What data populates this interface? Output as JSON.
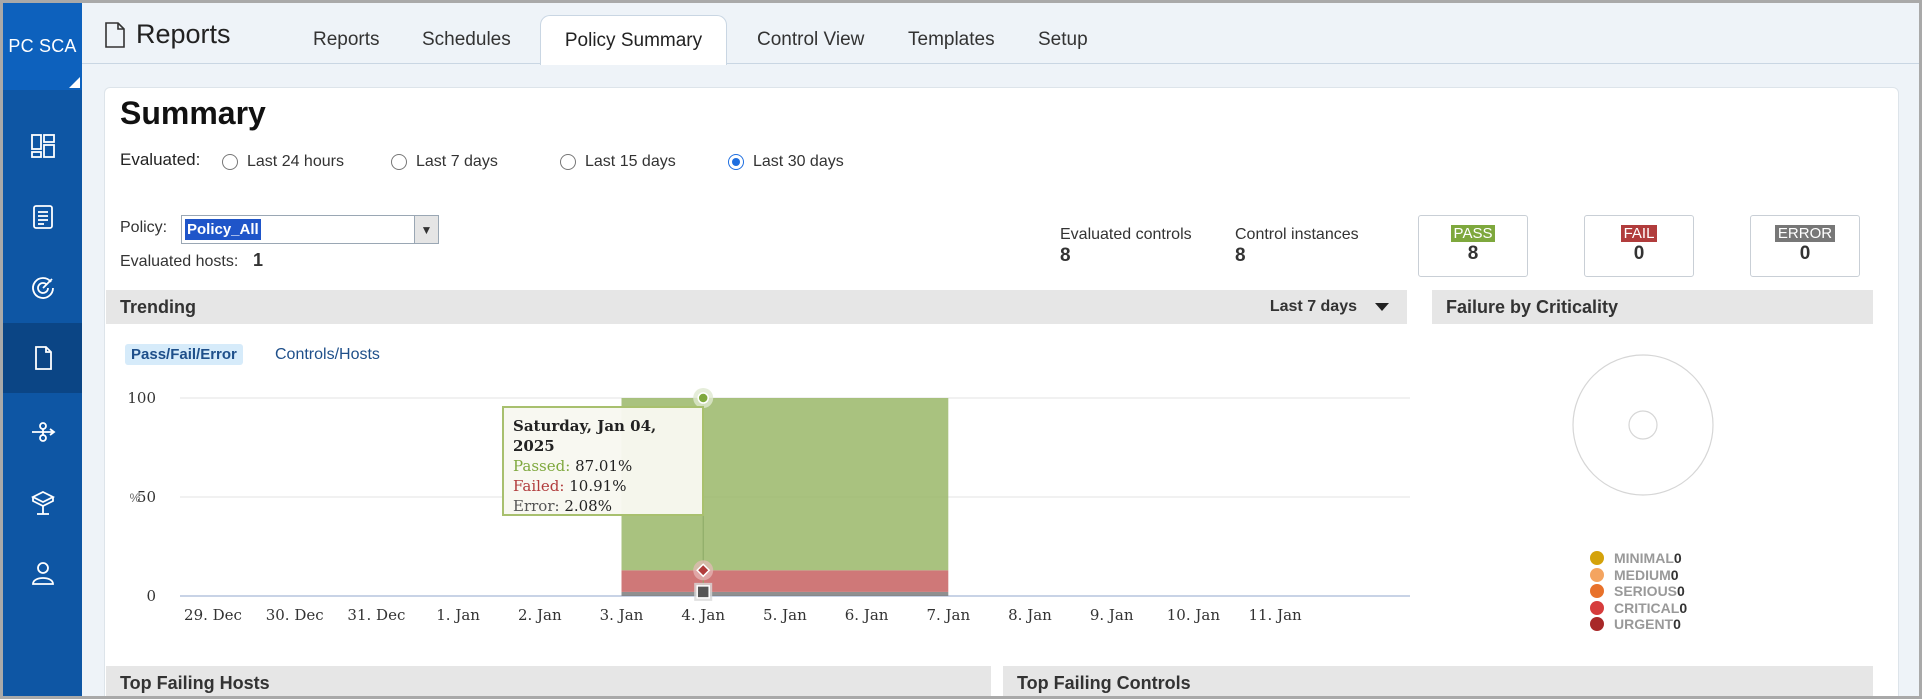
{
  "brand": {
    "label": "PC SCA"
  },
  "nav": {
    "items": [
      "dashboard-icon",
      "report-list-icon",
      "scan-icon",
      "document-icon",
      "workflow-icon",
      "cube-icon",
      "user-icon"
    ],
    "active_index": 3
  },
  "header": {
    "app_title": "Reports",
    "tabs": [
      {
        "label": "Reports"
      },
      {
        "label": "Schedules"
      },
      {
        "label": "Policy Summary",
        "active": true
      },
      {
        "label": "Control View"
      },
      {
        "label": "Templates"
      },
      {
        "label": "Setup"
      }
    ]
  },
  "summary": {
    "title": "Summary",
    "evaluated_label": "Evaluated:",
    "radios": [
      {
        "label": "Last 24 hours",
        "selected": false
      },
      {
        "label": "Last 7 days",
        "selected": false
      },
      {
        "label": "Last 15 days",
        "selected": false
      },
      {
        "label": "Last 30 days",
        "selected": true
      }
    ],
    "policy_label": "Policy:",
    "policy_value": "Policy_All",
    "hosts_label": "Evaluated hosts:",
    "hosts_value": "1",
    "evaluated_controls_label": "Evaluated controls",
    "evaluated_controls_value": "8",
    "control_instances_label": "Control instances",
    "control_instances_value": "8",
    "badges": [
      {
        "label": "PASS",
        "value": "8",
        "color": "#7ea83d"
      },
      {
        "label": "FAIL",
        "value": "0",
        "color": "#b13c3c"
      },
      {
        "label": "ERROR",
        "value": "0",
        "color": "#777777"
      }
    ]
  },
  "trending": {
    "title": "Trending",
    "range": "Last 7 days",
    "subtabs": [
      "Pass/Fail/Error",
      "Controls/Hosts"
    ],
    "tooltip": {
      "date": "Saturday, Jan 04, 2025",
      "passed_label": "Passed:",
      "passed_value": "87.01%",
      "failed_label": "Failed:",
      "failed_value": "10.91%",
      "error_label": "Error:",
      "error_value": "2.08%"
    }
  },
  "chart_data": {
    "type": "area",
    "x": [
      "29. Dec",
      "30. Dec",
      "31. Dec",
      "1. Jan",
      "2. Jan",
      "3. Jan",
      "4. Jan",
      "5. Jan",
      "6. Jan",
      "7. Jan",
      "8. Jan",
      "9. Jan",
      "10. Jan",
      "11. Jan"
    ],
    "yticks": [
      0,
      50,
      100
    ],
    "ylabel": "%",
    "ylim": [
      0,
      100
    ],
    "shaded_range": [
      "3. Jan",
      "7. Jan"
    ],
    "series": [
      {
        "name": "Passed",
        "color": "#9bb86a",
        "value": 87.01
      },
      {
        "name": "Failed",
        "color": "#c45a5a",
        "value": 10.91
      },
      {
        "name": "Error",
        "color": "#777777",
        "value": 2.08
      }
    ],
    "highlight_x": "4. Jan"
  },
  "criticality": {
    "title": "Failure by Criticality",
    "items": [
      {
        "name": "MINIMAL",
        "value": "0",
        "color": "#d4a20a"
      },
      {
        "name": "MEDIUM",
        "value": "0",
        "color": "#f4a460"
      },
      {
        "name": "SERIOUS",
        "value": "0",
        "color": "#e8712a"
      },
      {
        "name": "CRITICAL",
        "value": "0",
        "color": "#d63c3c"
      },
      {
        "name": "URGENT",
        "value": "0",
        "color": "#a82828"
      }
    ]
  },
  "bottom": {
    "top_failing_hosts": "Top Failing Hosts",
    "top_failing_controls": "Top Failing Controls"
  }
}
